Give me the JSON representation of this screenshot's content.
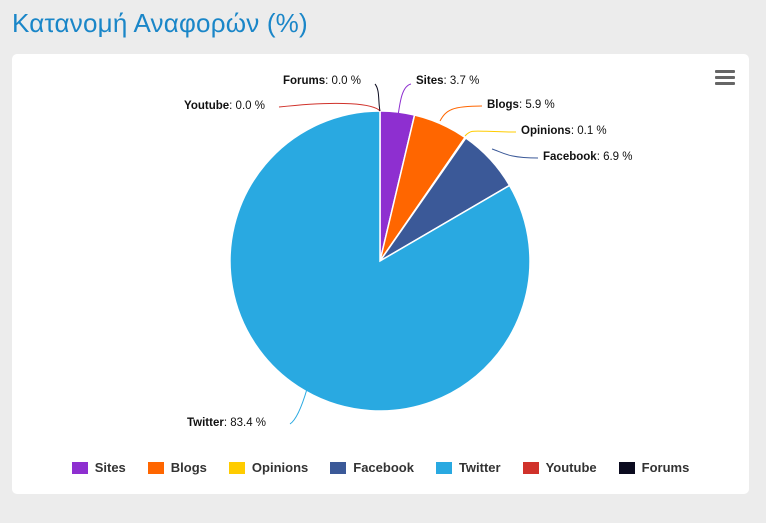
{
  "header": {
    "title": "Κατανομή Αναφορών (%)"
  },
  "menu": {
    "icon": "hamburger-menu-icon"
  },
  "chart_data": {
    "type": "pie",
    "title": "",
    "start_angle_deg": 0,
    "slices": [
      {
        "name": "Sites",
        "value": 3.7,
        "label": "3.7 %",
        "color": "#8e2fd0"
      },
      {
        "name": "Blogs",
        "value": 5.9,
        "label": "5.9 %",
        "color": "#ff6600"
      },
      {
        "name": "Opinions",
        "value": 0.1,
        "label": "0.1 %",
        "color": "#ffcc00"
      },
      {
        "name": "Facebook",
        "value": 6.9,
        "label": "6.9 %",
        "color": "#3b5998"
      },
      {
        "name": "Twitter",
        "value": 83.4,
        "label": "83.4 %",
        "color": "#29a9e1"
      },
      {
        "name": "Youtube",
        "value": 0.0,
        "label": "0.0 %",
        "color": "#d0322b"
      },
      {
        "name": "Forums",
        "value": 0.0,
        "label": "0.0 %",
        "color": "#0b0b1f"
      }
    ],
    "legend_position": "bottom"
  }
}
